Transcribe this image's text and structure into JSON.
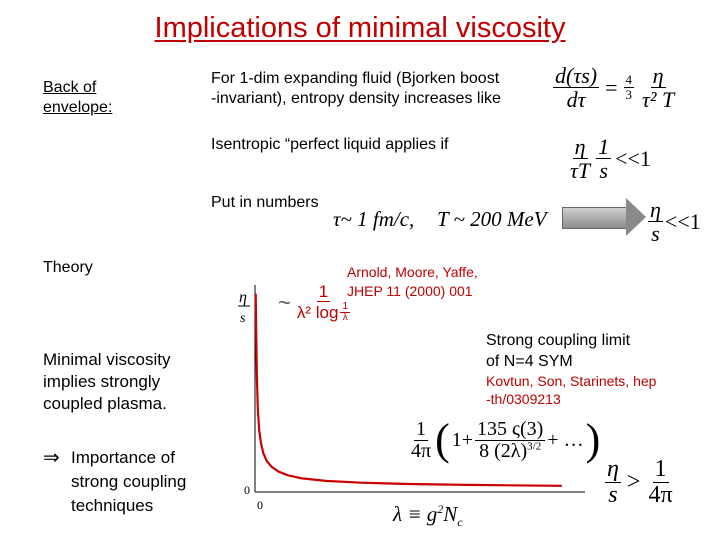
{
  "title": "Implications of minimal viscosity",
  "left": {
    "back_of_envelope": [
      "Back of",
      "envelope:"
    ],
    "theory": "Theory",
    "minimal_viscosity": [
      "Minimal viscosity",
      "implies strongly",
      "coupled plasma."
    ],
    "implication_arrow": "⇒",
    "importance": [
      "Importance of",
      "strong coupling",
      "techniques"
    ]
  },
  "bjorken": {
    "text": [
      "For 1-dim expanding fluid (Bjorken boost",
      "-invariant), entropy density increases like"
    ],
    "eq_lhs_num": "d(τs)",
    "eq_lhs_den": "dτ",
    "eq_rhs_coef_num": "4",
    "eq_rhs_coef_den": "3",
    "eq_rhs_num": "η",
    "eq_rhs_den": "τ² T"
  },
  "isentropic": {
    "text": "Isentropic “perfect liquid applies if",
    "cond_a_num": "η",
    "cond_a_den": "τT",
    "cond_b_num": "1",
    "cond_b_den": "s",
    "cond_rel": "<<1"
  },
  "numbers": {
    "label": "Put in numbers",
    "tau": "τ~ 1 fm/c,",
    "temp": "T ~ 200 MeV",
    "res_num": "η",
    "res_den": "s",
    "res_rel": "<<1"
  },
  "arnold": [
    "Arnold, Moore, Yaffe,",
    "JHEP 11 (2000) 001"
  ],
  "weak_formula": {
    "tilde": "~",
    "num": "1",
    "den": "λ² log",
    "log_num": "1",
    "log_den": "λ"
  },
  "strong": {
    "label": [
      "Strong coupling limit",
      "of N=4 SYM"
    ],
    "citation": [
      "Kovtun, Son, Starinets, hep",
      "-th/0309213"
    ]
  },
  "strong_formula": {
    "pre_num": "1",
    "pre_den": "4π",
    "open": "(",
    "one_plus": "1+",
    "corr_num": "135 ς(3)",
    "corr_den": "8 (2λ)",
    "corr_exp": "3/2",
    "plus_dots": "+ …",
    "close": ")"
  },
  "bound": {
    "lhs_num": "η",
    "lhs_den": "s",
    "rel": ">",
    "rhs_num": "1",
    "rhs_den": "4π"
  },
  "lambda_def": {
    "lhs": "λ ≡ g",
    "sup": "2",
    "rhs": "N",
    "sub": "c"
  },
  "plot": {
    "y_label_num": "η",
    "y_label_den": "s",
    "x_origin": "0",
    "y_origin": "0",
    "curve_color": "#cc0000"
  },
  "chart_data": {
    "type": "line",
    "title": "",
    "xlabel": "λ ≡ g²N_c",
    "ylabel": "η/s",
    "x": [
      0.03,
      0.05,
      0.08,
      0.12,
      0.18,
      0.25,
      0.35,
      0.5,
      0.7,
      1.0,
      1.4,
      2.0,
      3.0,
      4.5,
      6.5,
      9.0,
      13.0
    ],
    "series": [
      {
        "values": [
          3.2,
          2.6,
          1.85,
          1.35,
          1.0,
          0.8,
          0.63,
          0.5,
          0.41,
          0.33,
          0.27,
          0.22,
          0.18,
          0.15,
          0.13,
          0.115,
          0.1
        ]
      }
    ],
    "xlim": [
      0,
      14
    ],
    "ylim": [
      0,
      3.3
    ],
    "grid": false
  }
}
